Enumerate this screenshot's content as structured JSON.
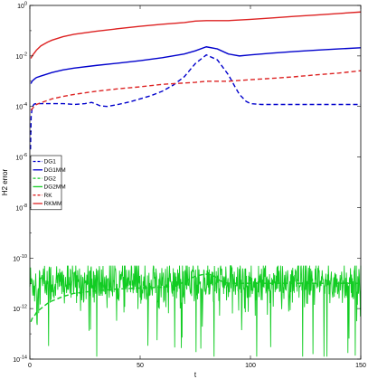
{
  "chart_data": {
    "type": "line",
    "title": "",
    "xlabel": "t",
    "ylabel": "H2 error",
    "xlim": [
      0,
      150
    ],
    "ylim": [
      1e-14,
      1
    ],
    "yscale": "log",
    "grid": false,
    "legend_position": "left, middle",
    "x_ticks": [
      {
        "value": 0,
        "label": "0"
      },
      {
        "value": 50,
        "label": "50"
      },
      {
        "value": 100,
        "label": "100"
      },
      {
        "value": 150,
        "label": "150"
      }
    ],
    "y_ticks": [
      {
        "exp": 0,
        "label": "10",
        "sup": "0"
      },
      {
        "exp": -2,
        "label": "10",
        "sup": "-2"
      },
      {
        "exp": -4,
        "label": "10",
        "sup": "-4"
      },
      {
        "exp": -6,
        "label": "10",
        "sup": "-6"
      },
      {
        "exp": -8,
        "label": "10",
        "sup": "-8"
      },
      {
        "exp": -10,
        "label": "10",
        "sup": "-10"
      },
      {
        "exp": -12,
        "label": "10",
        "sup": "-12"
      },
      {
        "exp": -14,
        "label": "10",
        "sup": "-14"
      }
    ],
    "series": [
      {
        "name": "DG1",
        "color": "#0000cc",
        "dash": "dashed",
        "x": [
          0.3,
          0.6,
          1,
          1.5,
          2,
          3,
          5,
          10,
          15,
          20,
          25,
          28,
          30,
          32,
          35,
          40,
          45,
          50,
          55,
          60,
          65,
          70,
          75,
          80,
          85,
          90,
          93,
          95,
          98,
          100,
          105,
          110,
          120,
          130,
          140,
          150
        ],
        "y": [
          2e-06,
          4e-05,
          8e-05,
          0.00011,
          0.000125,
          0.00013,
          0.00013,
          0.00013,
          0.00013,
          0.00012,
          0.00013,
          0.000145,
          0.000125,
          0.000105,
          0.0001,
          0.00012,
          0.00015,
          0.0002,
          0.00027,
          0.0004,
          0.0007,
          0.0015,
          0.005,
          0.011,
          0.007,
          0.0018,
          0.0006,
          0.0003,
          0.00016,
          0.00013,
          0.00012,
          0.00012,
          0.00012,
          0.00012,
          0.00012,
          0.00012
        ]
      },
      {
        "name": "DG1MM",
        "color": "#0000cc",
        "dash": "solid",
        "x": [
          0.5,
          1,
          2,
          3,
          5,
          10,
          15,
          20,
          30,
          40,
          50,
          60,
          70,
          75,
          80,
          85,
          90,
          95,
          100,
          110,
          120,
          130,
          140,
          150
        ],
        "y": [
          0.0008,
          0.001,
          0.0012,
          0.0014,
          0.0016,
          0.0022,
          0.0028,
          0.0033,
          0.0042,
          0.0052,
          0.0065,
          0.0085,
          0.012,
          0.016,
          0.023,
          0.019,
          0.012,
          0.01,
          0.011,
          0.013,
          0.015,
          0.017,
          0.019,
          0.021
        ]
      },
      {
        "name": "DG2",
        "color": "#11cc22",
        "dash": "dashed",
        "x": [
          0.5,
          1,
          2,
          3,
          5,
          8,
          10,
          15,
          20,
          25,
          30,
          40,
          50,
          60,
          65,
          70,
          73,
          75,
          78,
          80,
          82,
          84,
          86,
          88,
          90,
          95,
          100,
          110,
          120,
          130,
          140,
          150
        ],
        "y": [
          3e-13,
          4e-13,
          5e-13,
          7e-13,
          1e-12,
          1.6e-12,
          2e-12,
          3e-12,
          4e-12,
          4.5e-12,
          5e-12,
          6e-12,
          6.5e-12,
          7e-12,
          8e-12,
          1.1e-11,
          1.6e-11,
          1.9e-11,
          2.2e-11,
          2.3e-11,
          2.2e-11,
          1.8e-11,
          1.3e-11,
          1.1e-11,
          1e-11,
          1e-11,
          1e-11,
          1e-11,
          1e-11,
          1e-11,
          1e-11,
          1e-11
        ]
      },
      {
        "name": "DG2MM",
        "color": "#11cc22",
        "dash": "solid",
        "noise": true,
        "center": 1e-11,
        "range_exp": [
          -13.9,
          -10.3
        ],
        "typical_range_exp": [
          -12.2,
          -10.5
        ]
      },
      {
        "name": "RK",
        "color": "#dd2222",
        "dash": "dashed",
        "x": [
          0.5,
          1,
          2,
          3,
          5,
          10,
          15,
          20,
          30,
          40,
          50,
          60,
          70,
          75,
          80,
          85,
          90,
          100,
          110,
          120,
          130,
          140,
          150
        ],
        "y": [
          7e-05,
          8e-05,
          0.0001,
          0.00012,
          0.00014,
          0.0002,
          0.00025,
          0.0003,
          0.0004,
          0.0005,
          0.0006,
          0.00075,
          0.00085,
          0.0009,
          0.001,
          0.001,
          0.001,
          0.00115,
          0.0013,
          0.0015,
          0.0018,
          0.0021,
          0.0026
        ]
      },
      {
        "name": "RKMM",
        "color": "#dd2222",
        "dash": "solid",
        "x": [
          0.5,
          1,
          2,
          3,
          5,
          8,
          10,
          15,
          20,
          30,
          40,
          50,
          60,
          70,
          75,
          80,
          90,
          100,
          110,
          120,
          130,
          140,
          150
        ],
        "y": [
          0.008,
          0.01,
          0.013,
          0.017,
          0.025,
          0.035,
          0.042,
          0.058,
          0.072,
          0.095,
          0.12,
          0.15,
          0.18,
          0.21,
          0.24,
          0.25,
          0.25,
          0.28,
          0.32,
          0.37,
          0.42,
          0.48,
          0.55
        ]
      }
    ]
  }
}
